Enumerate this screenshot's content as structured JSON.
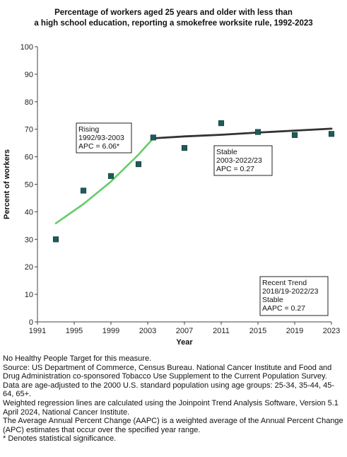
{
  "chart_data": {
    "type": "scatter",
    "title_lines": [
      "Percentage of workers aged 25 years and older with less than",
      "a high school education, reporting a smokefree worksite rule, 1992-2023"
    ],
    "xlabel": "Year",
    "ylabel": "Percent of workers",
    "xlim": [
      1991,
      2023
    ],
    "ylim": [
      0,
      100
    ],
    "xticks": [
      1991,
      1995,
      1999,
      2003,
      2007,
      2011,
      2015,
      2019,
      2023
    ],
    "yticks": [
      0,
      10,
      20,
      30,
      40,
      50,
      60,
      70,
      80,
      90,
      100
    ],
    "grid": false,
    "observed": {
      "color": "#1e5b5b",
      "points": [
        {
          "x": 1993,
          "y": 30.0
        },
        {
          "x": 1996,
          "y": 47.7
        },
        {
          "x": 1999,
          "y": 53.0
        },
        {
          "x": 2002,
          "y": 57.3
        },
        {
          "x": 2003.6,
          "y": 67.0
        },
        {
          "x": 2007,
          "y": 63.2
        },
        {
          "x": 2011,
          "y": 72.2
        },
        {
          "x": 2015,
          "y": 69.0
        },
        {
          "x": 2019,
          "y": 67.9
        },
        {
          "x": 2023,
          "y": 68.3
        }
      ]
    },
    "trend_segments": [
      {
        "color": "#66cc66",
        "points": [
          {
            "x": 1993,
            "y": 35.8
          },
          {
            "x": 1996,
            "y": 42.8
          },
          {
            "x": 1999,
            "y": 51.0
          },
          {
            "x": 2002,
            "y": 60.8
          },
          {
            "x": 2003.6,
            "y": 66.7
          }
        ]
      },
      {
        "color": "#333333",
        "points": [
          {
            "x": 2003.6,
            "y": 66.7
          },
          {
            "x": 2007,
            "y": 67.4
          },
          {
            "x": 2011,
            "y": 68.0
          },
          {
            "x": 2015,
            "y": 68.8
          },
          {
            "x": 2019,
            "y": 69.5
          },
          {
            "x": 2023,
            "y": 70.2
          }
        ]
      }
    ],
    "annotations": [
      {
        "lines": [
          "Rising",
          "1992/93-2003",
          "APC =  6.06*"
        ]
      },
      {
        "lines": [
          "Stable",
          "2003-2022/23",
          "APC =  0.27"
        ]
      },
      {
        "lines": [
          "Recent Trend",
          "2018/19-2022/23",
          "Stable",
          "AAPC =  0.27"
        ]
      }
    ]
  },
  "notes": [
    "No Healthy People Target for this measure.",
    "Source: US Department of Commerce, Census Bureau. National Cancer Institute and Food and Drug Administration co-sponsored Tobacco Use Supplement to the Current Population Survey.",
    "Data are age-adjusted to the 2000 U.S. standard population using age groups: 25-34, 35-44, 45-64, 65+.",
    "Weighted regression lines are calculated using the Joinpoint Trend Analysis Software, Version 5.1 April 2024, National Cancer Institute.",
    "The Average Annual Percent Change (AAPC) is a weighted average of the Annual Percent Change (APC) estimates that occur over the specified year range.",
    "* Denotes statistical significance."
  ]
}
